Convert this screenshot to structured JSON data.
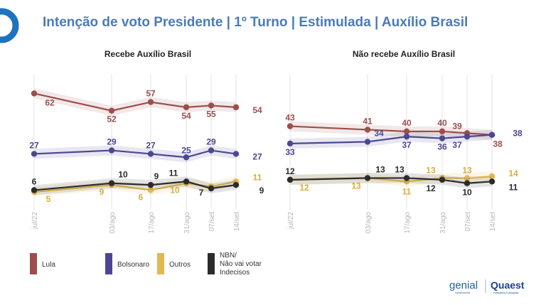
{
  "header": {
    "title": "Intenção de voto Presidente | 1º Turno | Estimulada | Auxílio Brasil"
  },
  "legend": [
    {
      "label": "Lula",
      "color": "#9C4E4C"
    },
    {
      "label": "Bolsonaro",
      "color": "#4B4891"
    },
    {
      "label": "Outros",
      "color": "#E2B94E"
    },
    {
      "label": "NBN/\nNão vai votar\nIndecisos",
      "color": "#2B2B2B"
    }
  ],
  "logos": {
    "genial": "genial",
    "genial_sub": "investimentos",
    "quaest": "Quaest",
    "quaest_sub": "consultoria & pesquisa"
  },
  "chart_data": [
    {
      "type": "line",
      "title": "Recebe Auxílio Brasil",
      "x": [
        "jul/22",
        "03/ago",
        "17/ago",
        "31/ago",
        "07/set",
        "14/set"
      ],
      "x_ticks": [
        "jul/22",
        "03/ago",
        "17/ago",
        "31/ago",
        "07/set",
        "14/set"
      ],
      "ylim": [
        0,
        70
      ],
      "grid": true,
      "series": [
        {
          "name": "Lula",
          "color": "#9C4E4C",
          "values": [
            62,
            52,
            57,
            54,
            55,
            54
          ]
        },
        {
          "name": "Bolsonaro",
          "color": "#4B4891",
          "values": [
            27,
            29,
            27,
            25,
            29,
            27
          ]
        },
        {
          "name": "Outros",
          "color": "#E2B94E",
          "values": [
            5,
            9,
            6,
            10,
            8,
            11
          ]
        },
        {
          "name": "NBN/Não vai votar/Indecisos",
          "color": "#2B2B2B",
          "values": [
            6,
            10,
            9,
            11,
            7,
            9
          ]
        }
      ]
    },
    {
      "type": "line",
      "title": "Não recebe Auxílio Brasil",
      "x": [
        "jul/22",
        "03/ago",
        "17/ago",
        "31/ago",
        "07/set",
        "14/set"
      ],
      "x_ticks": [
        "jul/22",
        "03/ago",
        "17/ago",
        "31/ago",
        "07/set",
        "14/set"
      ],
      "ylim": [
        0,
        70
      ],
      "grid": true,
      "series": [
        {
          "name": "Lula",
          "color": "#9C4E4C",
          "values": [
            43,
            41,
            40,
            40,
            39,
            38
          ]
        },
        {
          "name": "Bolsonaro",
          "color": "#4B4891",
          "values": [
            33,
            34,
            37,
            36,
            37,
            38
          ]
        },
        {
          "name": "Outros",
          "color": "#E2B94E",
          "values": [
            12,
            13,
            11,
            13,
            13,
            14
          ]
        },
        {
          "name": "NBN/Não vai votar/Indecisos",
          "color": "#2B2B2B",
          "values": [
            12,
            13,
            13,
            12,
            10,
            11
          ]
        }
      ]
    }
  ]
}
